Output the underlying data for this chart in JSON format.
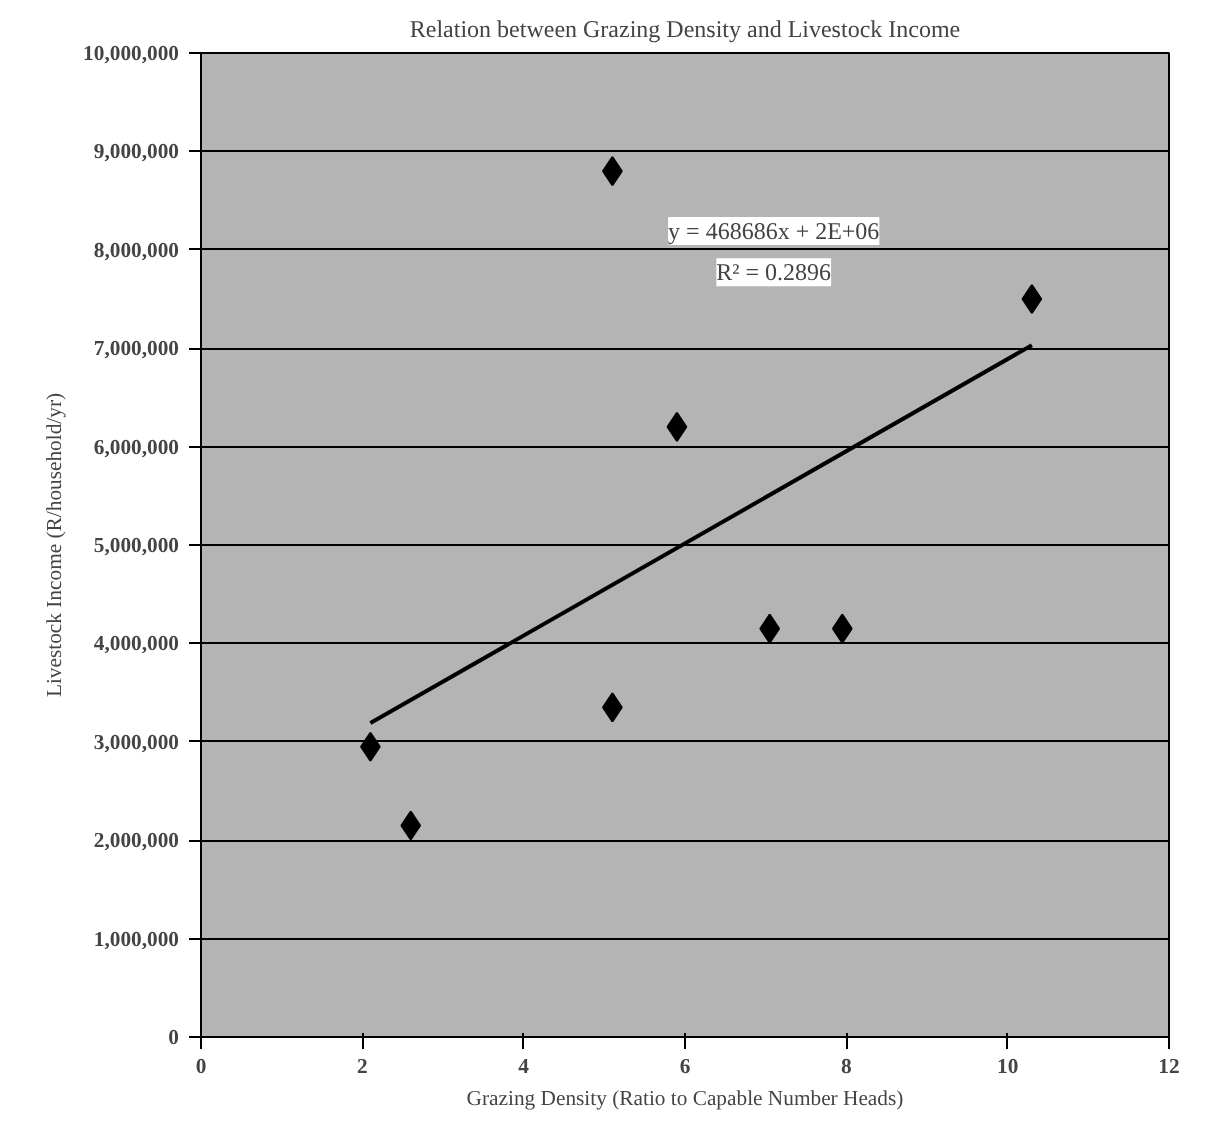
{
  "chart_data": {
    "type": "scatter",
    "title": "Relation between Grazing Density and Livestock Income",
    "xlabel": "Grazing Density (Ratio to Capable Number Heads)",
    "ylabel": "Livestock Income (R/household/yr)",
    "series": [
      {
        "color": "#000000",
        "marker": "diamond",
        "x": [
          2.1,
          2.6,
          5.1,
          5.1,
          5.9,
          7.05,
          7.95,
          10.3
        ],
        "values": [
          2950000,
          2150000,
          3350000,
          8800000,
          6200000,
          4150000,
          4150000,
          7500000
        ]
      },
      {
        "type": "line",
        "color": "#000000",
        "x": [
          2.1,
          10.3
        ],
        "values": [
          3190000,
          7030000
        ]
      }
    ],
    "annotations": [
      "y = 468686x + 2E+06",
      "R² = 0.2896"
    ],
    "xlim": [
      0,
      12
    ],
    "xticks": [
      0,
      2,
      4,
      6,
      8,
      10,
      12
    ],
    "ylim": [
      0,
      10000000
    ],
    "yticks": [
      {
        "value": 0,
        "label": "0"
      },
      {
        "value": 1000000,
        "label": "1,000,000"
      },
      {
        "value": 2000000,
        "label": "2,000,000"
      },
      {
        "value": 3000000,
        "label": "3,000,000"
      },
      {
        "value": 4000000,
        "label": "4,000,000"
      },
      {
        "value": 5000000,
        "label": "5,000,000"
      },
      {
        "value": 6000000,
        "label": "6,000,000"
      },
      {
        "value": 7000000,
        "label": "7,000,000"
      },
      {
        "value": 8000000,
        "label": "8,000,000"
      },
      {
        "value": 9000000,
        "label": "9,000,000"
      },
      {
        "value": 10000000,
        "label": "10,000,000"
      }
    ],
    "grid": "y"
  }
}
